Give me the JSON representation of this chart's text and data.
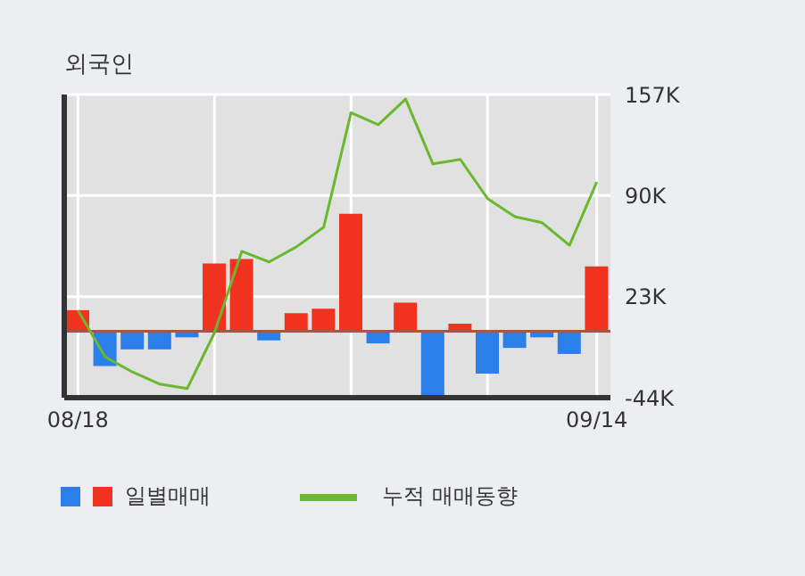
{
  "chart_data": {
    "type": "bar",
    "title": "외국인",
    "categories": [
      "08/18",
      null,
      null,
      null,
      null,
      null,
      null,
      null,
      null,
      null,
      null,
      null,
      null,
      null,
      null,
      null,
      null,
      null,
      null,
      "09/14"
    ],
    "series": [
      {
        "name": "일별매매",
        "values": [
          14,
          -23,
          -12,
          -12,
          -4,
          45,
          48,
          -6,
          12,
          15,
          78,
          -8,
          19,
          -43,
          5,
          -28,
          -11,
          -4,
          -15,
          43
        ],
        "colors": [
          "#f0321e",
          "#2a7fe8",
          "#2a7fe8",
          "#2a7fe8",
          "#2a7fe8",
          "#f0321e",
          "#f0321e",
          "#2a7fe8",
          "#f0321e",
          "#f0321e",
          "#f0321e",
          "#2a7fe8",
          "#f0321e",
          "#2a7fe8",
          "#f0321e",
          "#2a7fe8",
          "#2a7fe8",
          "#2a7fe8",
          "#2a7fe8",
          "#f0321e"
        ]
      },
      {
        "name": "누적 매매동향",
        "type": "line",
        "color": "#6ab82e",
        "values": [
          14,
          -17,
          -27,
          -35,
          -38,
          -1,
          53,
          46,
          56,
          69,
          145,
          137,
          154,
          111,
          114,
          88,
          76,
          72,
          57,
          99
        ]
      }
    ],
    "ylim": [
      -44,
      157
    ],
    "yticks": [
      {
        "value": 157,
        "label": "157K"
      },
      {
        "value": 90,
        "label": "90K"
      },
      {
        "value": 23,
        "label": "23K"
      },
      {
        "value": -44,
        "label": "-44K"
      }
    ],
    "ref_lines": [
      {
        "axis": "y",
        "value": 0,
        "color": "#a0584a"
      }
    ],
    "grid": true,
    "legend": "bottom",
    "marker": "none",
    "line_style": "solid"
  }
}
